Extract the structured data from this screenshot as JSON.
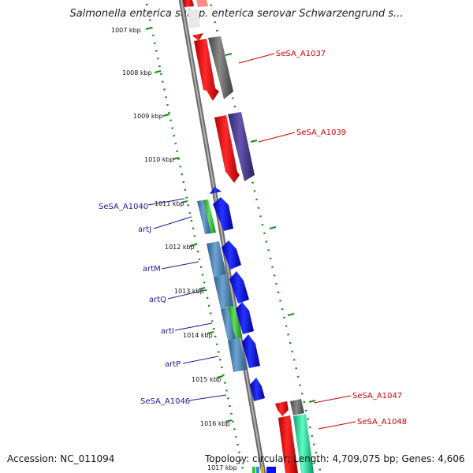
{
  "title": "Salmonella enterica subsp. enterica serovar Schwarzengrund s...",
  "accession": "Accession: NC_011094",
  "summary": "Topology: circular; Length: 4,709,075 bp; Genes: 4,606",
  "scale_labels": [
    "1007 kbp",
    "1008 kbp",
    "1009 kbp",
    "1010 kbp",
    "1011 kbp",
    "1012 kbp",
    "1013 kbp",
    "1014 kbp",
    "1015 kbp",
    "1016 kbp",
    "1017 kbp"
  ],
  "gene_labels": {
    "SeSA_A1037": "SeSA_A1037",
    "SeSA_A1039": "SeSA_A1039",
    "SeSA_A1040": "SeSA_A1040",
    "artJ": "artJ",
    "artM": "artM",
    "artQ": "artQ",
    "artI": "artI",
    "artP": "artP",
    "SeSA_A1046": "SeSA_A1046",
    "SeSA_A1047": "SeSA_A1047",
    "SeSA_A1048": "SeSA_A1048"
  },
  "colors": {
    "backbone": "#8c8c8c",
    "scale": "#1f8a1f",
    "cds_red": "#ff1a1a",
    "cds_gray": "#6e6e6e",
    "cds_purple": "#4b3f8f",
    "cds_blue": "#0b12e8",
    "cds_steel": "#4d86b8",
    "cds_green": "#2fc52f",
    "cds_teal": "#2fe0a0",
    "label_red": "#cc0000",
    "label_blue": "#1a1a99"
  }
}
